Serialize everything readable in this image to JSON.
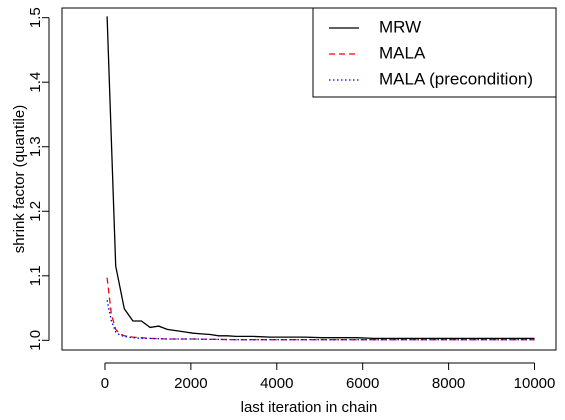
{
  "chart_data": {
    "type": "line",
    "title": "",
    "xlabel": "last iteration in chain",
    "ylabel": "shrink factor (quantile)",
    "xlim": [
      -1000,
      10500
    ],
    "ylim": [
      0.985,
      1.515
    ],
    "xticks": [
      0,
      2000,
      4000,
      6000,
      8000,
      10000
    ],
    "yticks": [
      1.0,
      1.1,
      1.2,
      1.3,
      1.4,
      1.5
    ],
    "xtick_labels": [
      "0",
      "2000",
      "4000",
      "6000",
      "8000",
      "10000"
    ],
    "ytick_labels": [
      "1.0",
      "1.1",
      "1.2",
      "1.3",
      "1.4",
      "1.5"
    ],
    "grid": false,
    "legend_position": "top-right",
    "series": [
      {
        "name": "MRW",
        "color": "#000000",
        "dash": "solid",
        "x": [
          50,
          250,
          450,
          650,
          850,
          1050,
          1250,
          1450,
          1650,
          1850,
          2050,
          2250,
          2450,
          2650,
          2850,
          3050,
          3450,
          3850,
          4250,
          4650,
          5050,
          5450,
          5850,
          6250,
          6650,
          7050,
          7450,
          7850,
          8250,
          8650,
          9050,
          9450,
          9850,
          10000
        ],
        "y": [
          1.502,
          1.115,
          1.049,
          1.03,
          1.03,
          1.02,
          1.022,
          1.017,
          1.015,
          1.013,
          1.011,
          1.01,
          1.009,
          1.007,
          1.007,
          1.006,
          1.006,
          1.005,
          1.005,
          1.005,
          1.004,
          1.004,
          1.004,
          1.003,
          1.003,
          1.003,
          1.003,
          1.003,
          1.003,
          1.003,
          1.003,
          1.003,
          1.003,
          1.003
        ]
      },
      {
        "name": "MALA",
        "color": "#ff0000",
        "dash": "dashed",
        "x": [
          50,
          150,
          250,
          350,
          450,
          650,
          850,
          1050,
          1450,
          2050,
          3050,
          4050,
          5050,
          6050,
          7050,
          8050,
          9050,
          10000
        ],
        "y": [
          1.097,
          1.04,
          1.017,
          1.01,
          1.007,
          1.005,
          1.004,
          1.003,
          1.002,
          1.002,
          1.001,
          1.001,
          1.001,
          1.001,
          1.001,
          1.001,
          1.001,
          1.001
        ]
      },
      {
        "name": "MALA (precondition)",
        "color": "#0000ff",
        "dash": "dotted",
        "x": [
          50,
          150,
          250,
          350,
          450,
          650,
          850,
          1050,
          1450,
          2050,
          3050,
          4050,
          5050,
          6050,
          7050,
          8050,
          9050,
          10000
        ],
        "y": [
          1.062,
          1.03,
          1.013,
          1.008,
          1.006,
          1.004,
          1.003,
          1.003,
          1.002,
          1.002,
          1.001,
          1.001,
          1.001,
          1.001,
          1.001,
          1.001,
          1.001,
          1.001
        ]
      }
    ]
  }
}
